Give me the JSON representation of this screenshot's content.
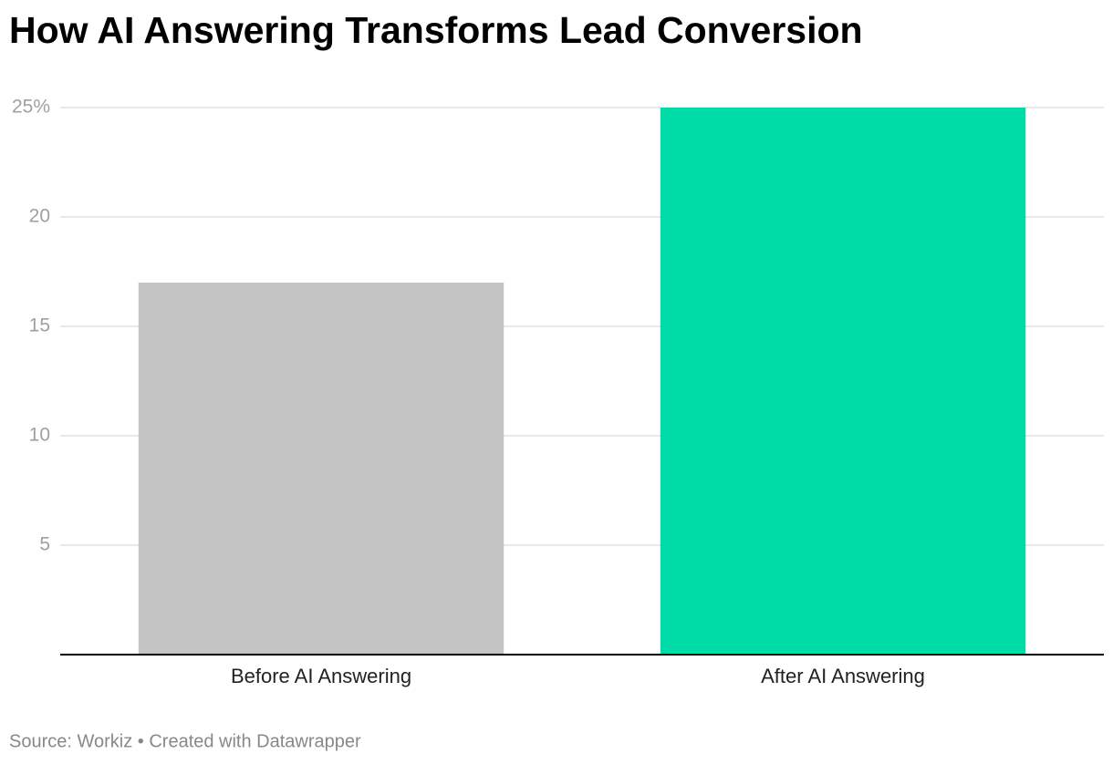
{
  "chart_data": {
    "type": "bar",
    "title": "How AI Answering Transforms Lead Conversion",
    "categories": [
      "Before AI Answering",
      "After AI Answering"
    ],
    "values": [
      17,
      25
    ],
    "colors": [
      "#c4c4c4",
      "#00dca8"
    ],
    "ylim": [
      0,
      25
    ],
    "yticks": [
      5,
      10,
      15,
      20,
      {
        "value": 25,
        "label": "25%"
      }
    ],
    "grid": true,
    "source": "Source: Workiz • Created with Datawrapper"
  }
}
